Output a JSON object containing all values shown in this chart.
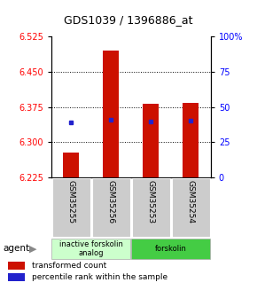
{
  "title": "GDS1039 / 1396886_at",
  "samples": [
    "GSM35255",
    "GSM35256",
    "GSM35253",
    "GSM35254"
  ],
  "bar_values": [
    6.278,
    6.495,
    6.382,
    6.384
  ],
  "bar_bottom": 6.225,
  "blue_dot_values": [
    6.342,
    6.348,
    6.344,
    6.346
  ],
  "ylim": [
    6.225,
    6.525
  ],
  "yticks_left": [
    6.225,
    6.3,
    6.375,
    6.45,
    6.525
  ],
  "yticks_right": [
    0,
    25,
    50,
    75,
    100
  ],
  "gridlines": [
    6.3,
    6.375,
    6.45
  ],
  "bar_color": "#cc1100",
  "dot_color": "#2222cc",
  "groups": [
    {
      "label": "inactive forskolin\nanalog",
      "cols": [
        0,
        1
      ],
      "color": "#ccffcc"
    },
    {
      "label": "forskolin",
      "cols": [
        2,
        3
      ],
      "color": "#44cc44"
    }
  ],
  "agent_label": "agent",
  "legend_red": "transformed count",
  "legend_blue": "percentile rank within the sample",
  "title_fontsize": 9,
  "tick_fontsize": 7,
  "sample_label_fontsize": 6.5,
  "bar_width": 0.4
}
